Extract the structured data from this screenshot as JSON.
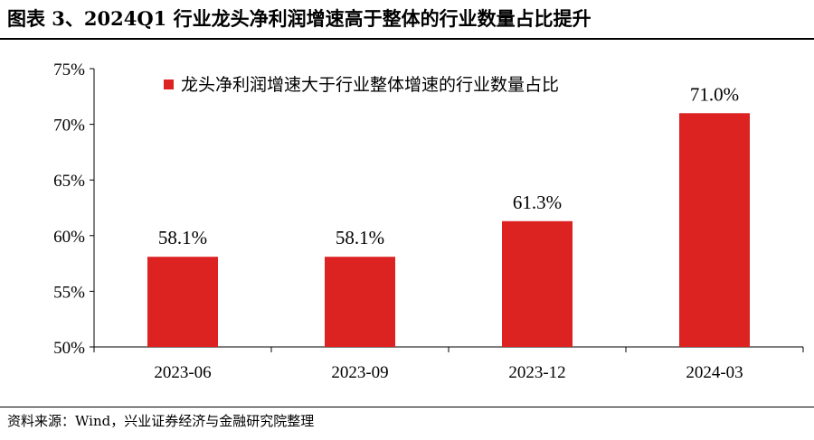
{
  "header": {
    "title": "图表 3、2024Q1 行业龙头净利润增速高于整体的行业数量占比提升"
  },
  "footer": {
    "source": "资料来源：Wind，兴业证券经济与金融研究院整理"
  },
  "colors": {
    "bar": "#dd2222",
    "axis": "#000000"
  },
  "chart_data": {
    "type": "bar",
    "title": "图表 3、2024Q1 行业龙头净利润增速高于整体的行业数量占比提升",
    "categories": [
      "2023-06",
      "2023-09",
      "2023-12",
      "2024-03"
    ],
    "series": [
      {
        "name": "龙头净利润增速大于行业整体增速的行业数量占比",
        "values": [
          58.1,
          58.1,
          61.3,
          71.0
        ]
      }
    ],
    "data_labels": [
      "58.1%",
      "58.1%",
      "61.3%",
      "71.0%"
    ],
    "ylim": [
      50,
      75
    ],
    "yticks": [
      50,
      55,
      60,
      65,
      70,
      75
    ],
    "ytick_labels": [
      "50%",
      "55%",
      "60%",
      "65%",
      "70%",
      "75%"
    ],
    "xlabel": "",
    "ylabel": "",
    "grid": false,
    "legend_position": "top"
  }
}
